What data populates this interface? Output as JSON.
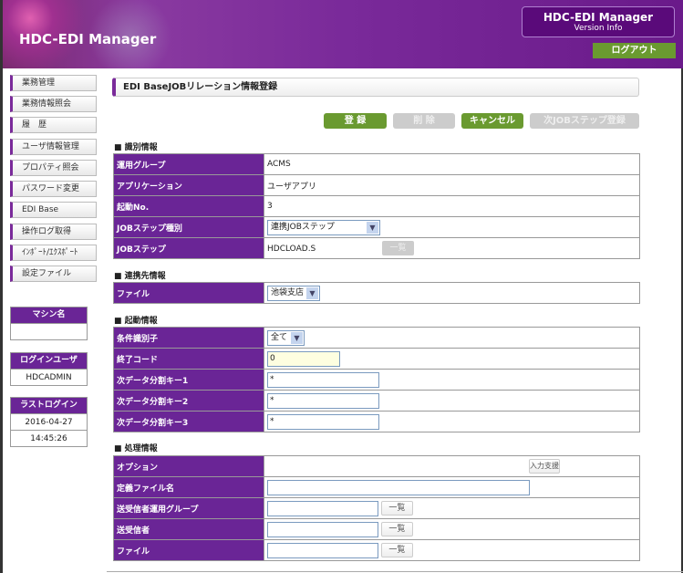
{
  "header": {
    "app_title": "HDC-EDI Manager",
    "version_title": "HDC-EDI Manager",
    "version_sub": "Version Info",
    "logout": "ログアウト"
  },
  "sidebar": {
    "items": [
      "業務管理",
      "業務情報照会",
      "履　歴",
      "ユーザ情報管理",
      "プロパティ照会",
      "パスワード変更",
      "EDI Base",
      "操作ログ取得",
      "ｲﾝﾎﾟｰﾄ/ｴｸｽﾎﾟｰﾄ",
      "設定ファイル"
    ],
    "machine_label": "マシン名",
    "machine_value": "",
    "login_user_label": "ログインユーザ",
    "login_user_value": "HDCADMIN",
    "last_login_label": "ラストログイン",
    "last_login_date": "2016-04-27",
    "last_login_time": "14:45:26"
  },
  "main": {
    "title": "EDI BaseJOBリレーション情報登録",
    "buttons": {
      "register": "登 録",
      "delete": "削 除",
      "cancel": "キャンセル",
      "next_step": "次JOBステップ登録"
    },
    "sections": {
      "ident": {
        "title": "■ 識別情報",
        "group_label": "運用グループ",
        "group_value": "ACMS",
        "app_label": "アプリケーション",
        "app_value": "ユーザアプリ",
        "start_no_label": "起動No.",
        "start_no_value": "3",
        "step_type_label": "JOBステップ種別",
        "step_type_value": "連携JOBステップ",
        "step_label": "JOBステップ",
        "step_value": "HDCLOAD.S",
        "list": "一覧"
      },
      "link": {
        "title": "■ 連携先情報",
        "file_label": "ファイル",
        "file_value": "池袋支店"
      },
      "start": {
        "title": "■ 起動情報",
        "cond_label": "条件識別子",
        "cond_value": "全て",
        "exit_label": "終了コード",
        "exit_value": "0",
        "key1_label": "次データ分割キー1",
        "key1_value": "*",
        "key2_label": "次データ分割キー2",
        "key2_value": "*",
        "key3_label": "次データ分割キー3",
        "key3_value": "*"
      },
      "proc": {
        "title": "■ 処理情報",
        "option_label": "オプション",
        "input_help": "入力支援",
        "def_file_label": "定義ファイル名",
        "def_file_value": "",
        "sr_group_label": "送受信者運用グループ",
        "sr_group_value": "",
        "sr_label": "送受信者",
        "sr_value": "",
        "file_label": "ファイル",
        "file_value": "",
        "list": "一覧"
      }
    }
  }
}
